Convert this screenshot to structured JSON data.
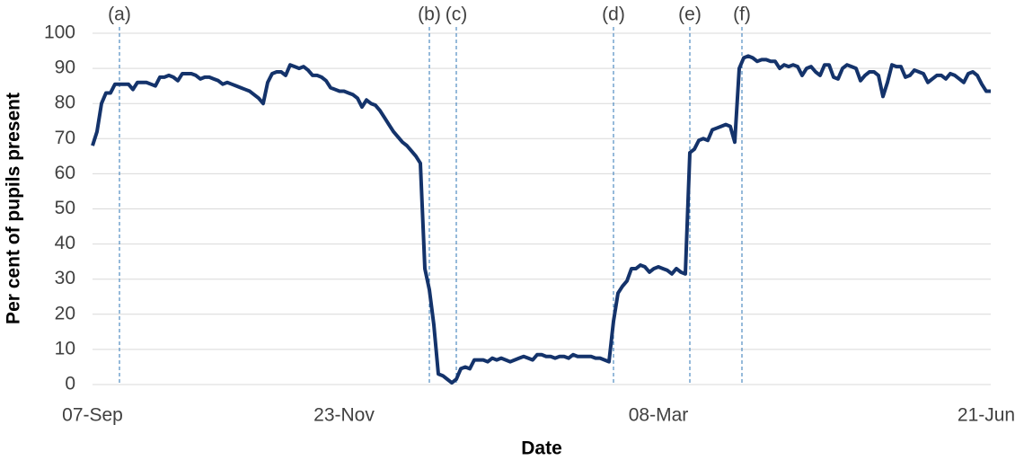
{
  "chart_data": {
    "type": "line",
    "x_label": "Date",
    "y_label": "Per cent of pupils present",
    "categories": [
      "07-Sep",
      null,
      null,
      null,
      null,
      null,
      null,
      null,
      null,
      null,
      null,
      null,
      null,
      null,
      null,
      null,
      null,
      null,
      null,
      null,
      null,
      null,
      null,
      null,
      null,
      null,
      null,
      null,
      null,
      null,
      null,
      null,
      null,
      null,
      null,
      null,
      null,
      null,
      null,
      null,
      null,
      null,
      null,
      null,
      null,
      null,
      null,
      null,
      null,
      null,
      null,
      null,
      null,
      null,
      null,
      null,
      "23-Nov",
      null,
      null,
      null,
      null,
      null,
      null,
      null,
      null,
      null,
      null,
      null,
      null,
      null,
      null,
      null,
      null,
      null,
      null,
      null,
      null,
      null,
      null,
      null,
      null,
      null,
      null,
      null,
      null,
      null,
      null,
      null,
      null,
      null,
      null,
      null,
      null,
      null,
      null,
      null,
      null,
      null,
      null,
      null,
      null,
      null,
      null,
      null,
      null,
      null,
      null,
      null,
      null,
      null,
      null,
      null,
      null,
      null,
      null,
      null,
      null,
      null,
      null,
      null,
      null,
      null,
      null,
      null,
      null,
      null,
      "08-Mar",
      null,
      null,
      null,
      null,
      null,
      null,
      null,
      null,
      null,
      null,
      null,
      null,
      null,
      null,
      null,
      null,
      null,
      null,
      null,
      null,
      null,
      null,
      null,
      null,
      null,
      null,
      null,
      null,
      null,
      null,
      null,
      null,
      null,
      null,
      null,
      null,
      null,
      null,
      null,
      null,
      null,
      null,
      null,
      null,
      null,
      null,
      null,
      null,
      null,
      null,
      null,
      null,
      null,
      null,
      null,
      null,
      null,
      null,
      null,
      null,
      null,
      null,
      null,
      null,
      null,
      null,
      null,
      null,
      null,
      null,
      null,
      null,
      "21-Jun",
      null
    ],
    "series": [
      {
        "name": "Per cent of pupils present",
        "color": "#14336b",
        "values": [
          68,
          72,
          80,
          83,
          83,
          85.5,
          85.5,
          85.5,
          85.5,
          84,
          86,
          86,
          86,
          85.5,
          85,
          87.5,
          87.5,
          88,
          87.5,
          86.5,
          88.5,
          88.5,
          88.5,
          88,
          87,
          87.5,
          87.5,
          87,
          86.5,
          85.5,
          86,
          85.5,
          85,
          84.5,
          84,
          83.5,
          82.5,
          81.5,
          80,
          86,
          88.5,
          89,
          89,
          88,
          91,
          90.5,
          90,
          90.5,
          89.5,
          88,
          88,
          87.5,
          86.5,
          84.5,
          84,
          83.5,
          83.5,
          83,
          82.5,
          81.5,
          79,
          81,
          80,
          79.5,
          78,
          76,
          74,
          72,
          70.5,
          69,
          68,
          66.5,
          65,
          63,
          33,
          27,
          17,
          3,
          2.5,
          1.5,
          0.5,
          1.5,
          4.5,
          5,
          4.5,
          7,
          7,
          7,
          6.5,
          7.5,
          7,
          7.5,
          7,
          6.5,
          7,
          7.5,
          8,
          7.5,
          7,
          8.5,
          8.5,
          8,
          8,
          7.5,
          8,
          8,
          7.5,
          8.5,
          8,
          8,
          8,
          8,
          7.5,
          7.5,
          7,
          6.5,
          18,
          26,
          28,
          29.5,
          33,
          33,
          34,
          33.5,
          32,
          33,
          33.5,
          33,
          32.5,
          31.5,
          33,
          32,
          31.5,
          66,
          67,
          69.5,
          70,
          69.5,
          72.5,
          73,
          73.5,
          74,
          73.5,
          69,
          90,
          93,
          93.5,
          93,
          92,
          92.5,
          92.5,
          92,
          92,
          90,
          91,
          90.5,
          91,
          90.5,
          88,
          90,
          90.5,
          89,
          88,
          91,
          91,
          87.5,
          87,
          90,
          91,
          90.5,
          90,
          86.5,
          88,
          89,
          89,
          88,
          82,
          86,
          91,
          90.5,
          90.5,
          87.5,
          88,
          89.5,
          89,
          88.5,
          86,
          87,
          88,
          88,
          87,
          88.5,
          88,
          87,
          86,
          88.5,
          89,
          88,
          85.5,
          83.5,
          83.5
        ]
      }
    ],
    "annotations": [
      {
        "label": "(a)",
        "category": 6
      },
      {
        "label": "(b)",
        "category": 75
      },
      {
        "label": "(c)",
        "category": 81
      },
      {
        "label": "(d)",
        "category": 116
      },
      {
        "label": "(e)",
        "category": 133
      },
      {
        "label": "(f)",
        "category": 144.6
      }
    ],
    "ylim": [
      0,
      100
    ],
    "yticks": [
      0,
      10,
      20,
      30,
      40,
      50,
      60,
      70,
      80,
      90,
      100
    ],
    "grid": true
  }
}
